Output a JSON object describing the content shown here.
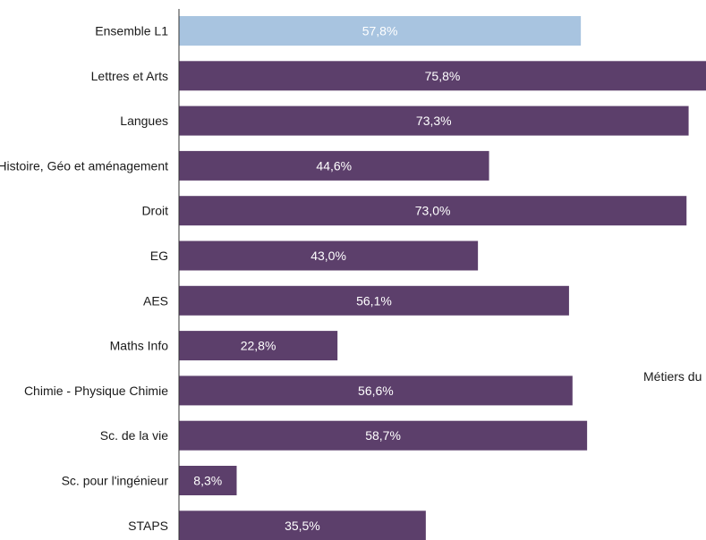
{
  "chart_data": {
    "type": "bar",
    "orientation": "horizontal",
    "categories": [
      "Ensemble L1",
      "Lettres et Arts",
      "Langues",
      "Histoire, Géo et aménagement",
      "Droit",
      "EG",
      "AES",
      "Maths Info",
      "Chimie - Physique Chimie",
      "Sc. de la vie",
      "Sc. pour l'ingénieur",
      "STAPS"
    ],
    "values": [
      57.8,
      75.8,
      73.3,
      44.6,
      73.0,
      43.0,
      56.1,
      22.8,
      56.6,
      58.7,
      8.3,
      35.5
    ],
    "value_labels": [
      "57,8%",
      "75,8%",
      "73,3%",
      "44,6%",
      "73,0%",
      "43,0%",
      "56,1%",
      "22,8%",
      "56,6%",
      "58,7%",
      "8,3%",
      "35,5%"
    ],
    "xlim": [
      0,
      75.8
    ],
    "grid": false,
    "highlight_index": 0,
    "colors": {
      "highlight": "#a8c4e0",
      "bar": "#5c3f6b",
      "axis": "#333333"
    },
    "annotation": "Métiers du"
  }
}
